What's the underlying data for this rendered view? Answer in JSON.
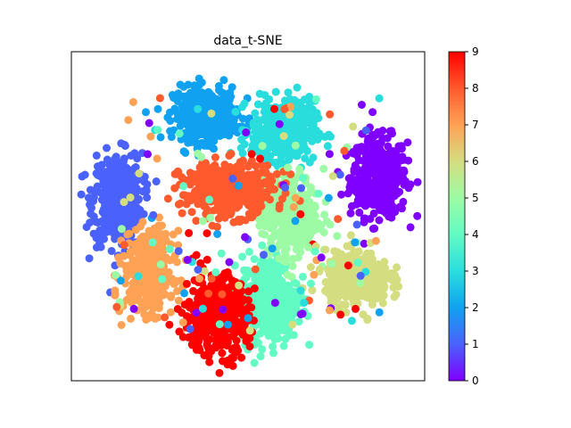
{
  "chart_data": {
    "type": "scatter",
    "title": "data_t-SNE",
    "xlabel": "",
    "ylabel": "",
    "axis_ticks_visible": false,
    "grid": false,
    "legend": "none",
    "colorbar": {
      "colormap": "rainbow",
      "range": [
        0,
        9
      ],
      "ticks": [
        "0",
        "1",
        "2",
        "3",
        "4",
        "5",
        "6",
        "7",
        "8",
        "9"
      ]
    },
    "clusters": [
      {
        "label": 0,
        "color": "#8000ff",
        "center": [
          0.87,
          0.62
        ],
        "spread": [
          0.08,
          0.12
        ]
      },
      {
        "label": 1,
        "color": "#4a62fb",
        "center": [
          0.13,
          0.55
        ],
        "spread": [
          0.07,
          0.14
        ]
      },
      {
        "label": 2,
        "color": "#10a2f0",
        "center": [
          0.38,
          0.81
        ],
        "spread": [
          0.09,
          0.08
        ]
      },
      {
        "label": 3,
        "color": "#2adddd",
        "center": [
          0.6,
          0.76
        ],
        "spread": [
          0.09,
          0.09
        ]
      },
      {
        "label": 4,
        "color": "#62fbc4",
        "center": [
          0.56,
          0.25
        ],
        "spread": [
          0.08,
          0.13
        ]
      },
      {
        "label": 5,
        "color": "#9cfba4",
        "center": [
          0.62,
          0.5
        ],
        "spread": [
          0.08,
          0.12
        ]
      },
      {
        "label": 6,
        "color": "#d4dd80",
        "center": [
          0.81,
          0.31
        ],
        "spread": [
          0.09,
          0.08
        ]
      },
      {
        "label": 7,
        "color": "#ffa256",
        "center": [
          0.22,
          0.33
        ],
        "spread": [
          0.07,
          0.12
        ]
      },
      {
        "label": 8,
        "color": "#ff5a2e",
        "center": [
          0.44,
          0.58
        ],
        "spread": [
          0.13,
          0.08
        ]
      },
      {
        "label": 9,
        "color": "#ff0000",
        "center": [
          0.41,
          0.2
        ],
        "spread": [
          0.09,
          0.12
        ]
      }
    ]
  }
}
